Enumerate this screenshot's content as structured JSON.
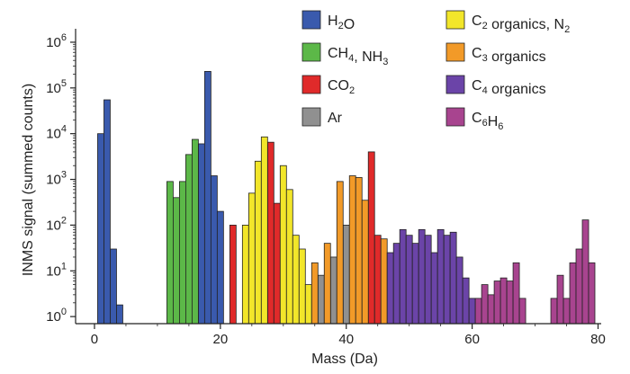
{
  "chart_data": {
    "type": "bar",
    "xlabel": "Mass (Da)",
    "ylabel": "INMS signal (summed counts)",
    "xlim": [
      -3,
      80.5
    ],
    "ylim": [
      0.7,
      1500000
    ],
    "yscale": "log",
    "grid": false,
    "legend_placement": "top",
    "x_ticks": [
      0,
      20,
      40,
      60,
      80
    ],
    "y_ticks": [
      {
        "value": 1,
        "base": "10",
        "exp": "0"
      },
      {
        "value": 10,
        "base": "10",
        "exp": "1"
      },
      {
        "value": 100,
        "base": "10",
        "exp": "2"
      },
      {
        "value": 1000,
        "base": "10",
        "exp": "3"
      },
      {
        "value": 10000,
        "base": "10",
        "exp": "4"
      },
      {
        "value": 100000,
        "base": "10",
        "exp": "5"
      },
      {
        "value": 1000000,
        "base": "10",
        "exp": "6"
      }
    ],
    "series": [
      {
        "name": "H2O",
        "label_parts": [
          [
            "H",
            ""
          ],
          [
            "2",
            "sub"
          ],
          [
            "O",
            ""
          ]
        ],
        "color": "#3a5aad",
        "points": [
          [
            1,
            10000
          ],
          [
            2,
            55000
          ],
          [
            3,
            30
          ],
          [
            4,
            1.8
          ],
          [
            17,
            6000
          ],
          [
            18,
            230000
          ],
          [
            19,
            1200
          ],
          [
            20,
            200
          ]
        ]
      },
      {
        "name": "CH4, NH3",
        "label_parts": [
          [
            "CH",
            ""
          ],
          [
            "4",
            "sub"
          ],
          [
            ", NH",
            ""
          ],
          [
            "3",
            "sub"
          ]
        ],
        "color": "#5cb848",
        "points": [
          [
            12,
            900
          ],
          [
            13,
            400
          ],
          [
            14,
            900
          ],
          [
            15,
            3500
          ],
          [
            16,
            7500
          ]
        ]
      },
      {
        "name": "CO2",
        "label_parts": [
          [
            "CO",
            ""
          ],
          [
            "2",
            "sub"
          ]
        ],
        "color": "#e02a2a",
        "points": [
          [
            22,
            100
          ],
          [
            28,
            6500
          ],
          [
            29,
            300
          ],
          [
            44,
            4000
          ],
          [
            45,
            60
          ]
        ]
      },
      {
        "name": "Ar",
        "label_parts": [
          [
            "Ar",
            ""
          ]
        ],
        "color": "#909090",
        "points": [
          [
            36,
            8
          ],
          [
            38,
            20
          ],
          [
            40,
            100
          ]
        ]
      },
      {
        "name": "C2 organics, N2",
        "label_parts": [
          [
            "C",
            ""
          ],
          [
            "2",
            "sub"
          ],
          [
            " organics, N",
            ""
          ],
          [
            "2",
            "sub"
          ]
        ],
        "color": "#f2e62a",
        "points": [
          [
            24,
            100
          ],
          [
            25,
            500
          ],
          [
            26,
            2500
          ],
          [
            27,
            8500
          ],
          [
            30,
            2000
          ],
          [
            31,
            600
          ],
          [
            32,
            60
          ],
          [
            33,
            30
          ],
          [
            34,
            5
          ]
        ]
      },
      {
        "name": "C3 organics",
        "label_parts": [
          [
            "C",
            ""
          ],
          [
            "3",
            "sub"
          ],
          [
            " organics",
            ""
          ]
        ],
        "color": "#f29a28",
        "points": [
          [
            35,
            15
          ],
          [
            37,
            40
          ],
          [
            39,
            900
          ],
          [
            41,
            1200
          ],
          [
            42,
            1100
          ],
          [
            43,
            350
          ],
          [
            46,
            50
          ]
        ]
      },
      {
        "name": "C4 organics",
        "label_parts": [
          [
            "C",
            ""
          ],
          [
            "4",
            "sub"
          ],
          [
            " organics",
            ""
          ]
        ],
        "color": "#6b44a8",
        "points": [
          [
            47,
            25
          ],
          [
            48,
            40
          ],
          [
            49,
            80
          ],
          [
            50,
            60
          ],
          [
            51,
            40
          ],
          [
            52,
            80
          ],
          [
            53,
            60
          ],
          [
            54,
            25
          ],
          [
            55,
            80
          ],
          [
            56,
            60
          ],
          [
            57,
            70
          ],
          [
            58,
            20
          ],
          [
            59,
            7
          ],
          [
            60,
            2.5
          ]
        ]
      },
      {
        "name": "C6H6",
        "label_parts": [
          [
            "C",
            ""
          ],
          [
            "6",
            "sub"
          ],
          [
            "H",
            ""
          ],
          [
            "6",
            "sub"
          ]
        ],
        "color": "#a8448f",
        "points": [
          [
            61,
            2.5
          ],
          [
            62,
            5
          ],
          [
            63,
            3
          ],
          [
            64,
            6
          ],
          [
            65,
            7
          ],
          [
            66,
            6
          ],
          [
            67,
            15
          ],
          [
            68,
            2.5
          ],
          [
            73,
            2.5
          ],
          [
            74,
            8
          ],
          [
            75,
            2.5
          ],
          [
            76,
            15
          ],
          [
            77,
            30
          ],
          [
            78,
            130
          ],
          [
            79,
            15
          ]
        ]
      }
    ]
  }
}
